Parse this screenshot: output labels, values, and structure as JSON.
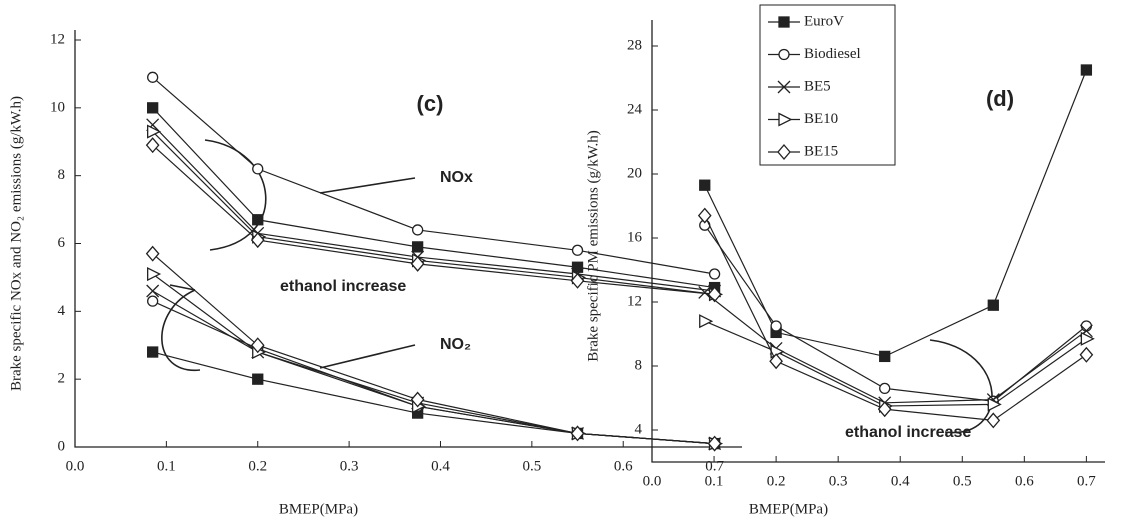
{
  "chart_data": [
    {
      "type": "line",
      "panel_label": "(c)",
      "x_label": "BMEP(MPa)",
      "y_label": "Brake specific NOx and NO₂ emissions (g/kW.h)",
      "x": [
        0.085,
        0.2,
        0.375,
        0.55,
        0.7
      ],
      "xlim": [
        0,
        0.73
      ],
      "xticks": [
        {
          "value": 0,
          "label": "0.0"
        },
        0.1,
        0.2,
        0.3,
        0.4,
        0.5,
        0.6,
        0.7
      ],
      "ylim": [
        0,
        12
      ],
      "yticks": [
        0,
        2,
        4,
        6,
        8,
        10,
        12
      ],
      "annotations": [
        "NOx",
        "NO₂",
        "ethanol increase"
      ],
      "series": [
        {
          "name": "EuroV",
          "marker": "square",
          "color": "#222",
          "values": [
            10.0,
            6.7,
            5.9,
            5.3,
            4.7
          ]
        },
        {
          "name": "Biodiesel",
          "marker": "circle",
          "color": "#222",
          "values": [
            10.9,
            8.2,
            6.4,
            5.8,
            5.1
          ]
        },
        {
          "name": "BE5",
          "marker": "x",
          "color": "#222",
          "values": [
            9.5,
            6.3,
            5.6,
            5.1,
            4.6
          ]
        },
        {
          "name": "BE10",
          "marker": "triangle",
          "color": "#222",
          "values": [
            9.3,
            6.2,
            5.5,
            5.0,
            4.5
          ]
        },
        {
          "name": "BE15",
          "marker": "diamond",
          "color": "#222",
          "values": [
            8.9,
            6.1,
            5.4,
            4.9,
            4.5
          ]
        },
        {
          "name": "EuroV",
          "marker": "square",
          "color": "#222",
          "values": [
            2.8,
            2.0,
            1.0,
            0.4,
            0.1
          ]
        },
        {
          "name": "Biodiesel",
          "marker": "circle",
          "color": "#222",
          "values": [
            4.3,
            2.9,
            1.2,
            0.4,
            0.1
          ]
        },
        {
          "name": "BE5",
          "marker": "x",
          "color": "#222",
          "values": [
            4.6,
            2.8,
            1.3,
            0.4,
            0.1
          ]
        },
        {
          "name": "BE10",
          "marker": "triangle",
          "color": "#222",
          "values": [
            5.1,
            2.8,
            1.2,
            0.4,
            0.1
          ]
        },
        {
          "name": "BE15",
          "marker": "diamond",
          "color": "#222",
          "values": [
            5.7,
            3.0,
            1.4,
            0.4,
            0.1
          ]
        }
      ]
    },
    {
      "type": "line",
      "panel_label": "(d)",
      "x_label": "BMEP(MPa)",
      "y_label": "Brake specific PM emissions (g/kW.h)",
      "x": [
        0.085,
        0.2,
        0.375,
        0.55,
        0.7
      ],
      "xlim": [
        0,
        0.73
      ],
      "xticks": [
        {
          "value": 0,
          "label": "0.0"
        },
        0.1,
        0.2,
        0.3,
        0.4,
        0.5,
        0.6,
        0.7
      ],
      "ylim": [
        2,
        29
      ],
      "yticks": [
        4,
        8,
        12,
        16,
        20,
        24,
        28
      ],
      "legend": "upper center",
      "annotations": [
        "ethanol increase"
      ],
      "series": [
        {
          "name": "EuroV",
          "marker": "square",
          "color": "#222",
          "values": [
            19.3,
            10.1,
            8.6,
            11.8,
            26.5
          ]
        },
        {
          "name": "Biodiesel",
          "marker": "circle",
          "color": "#222",
          "values": [
            16.8,
            10.5,
            6.6,
            5.8,
            10.5
          ]
        },
        {
          "name": "BE5",
          "marker": "x",
          "color": "#222",
          "values": [
            12.6,
            9.1,
            5.7,
            5.9,
            10.2
          ]
        },
        {
          "name": "BE10",
          "marker": "triangle",
          "color": "#222",
          "values": [
            10.8,
            8.9,
            5.5,
            5.6,
            9.7
          ]
        },
        {
          "name": "BE15",
          "marker": "diamond",
          "color": "#222",
          "values": [
            17.4,
            8.3,
            5.3,
            4.6,
            8.7
          ]
        }
      ]
    }
  ]
}
